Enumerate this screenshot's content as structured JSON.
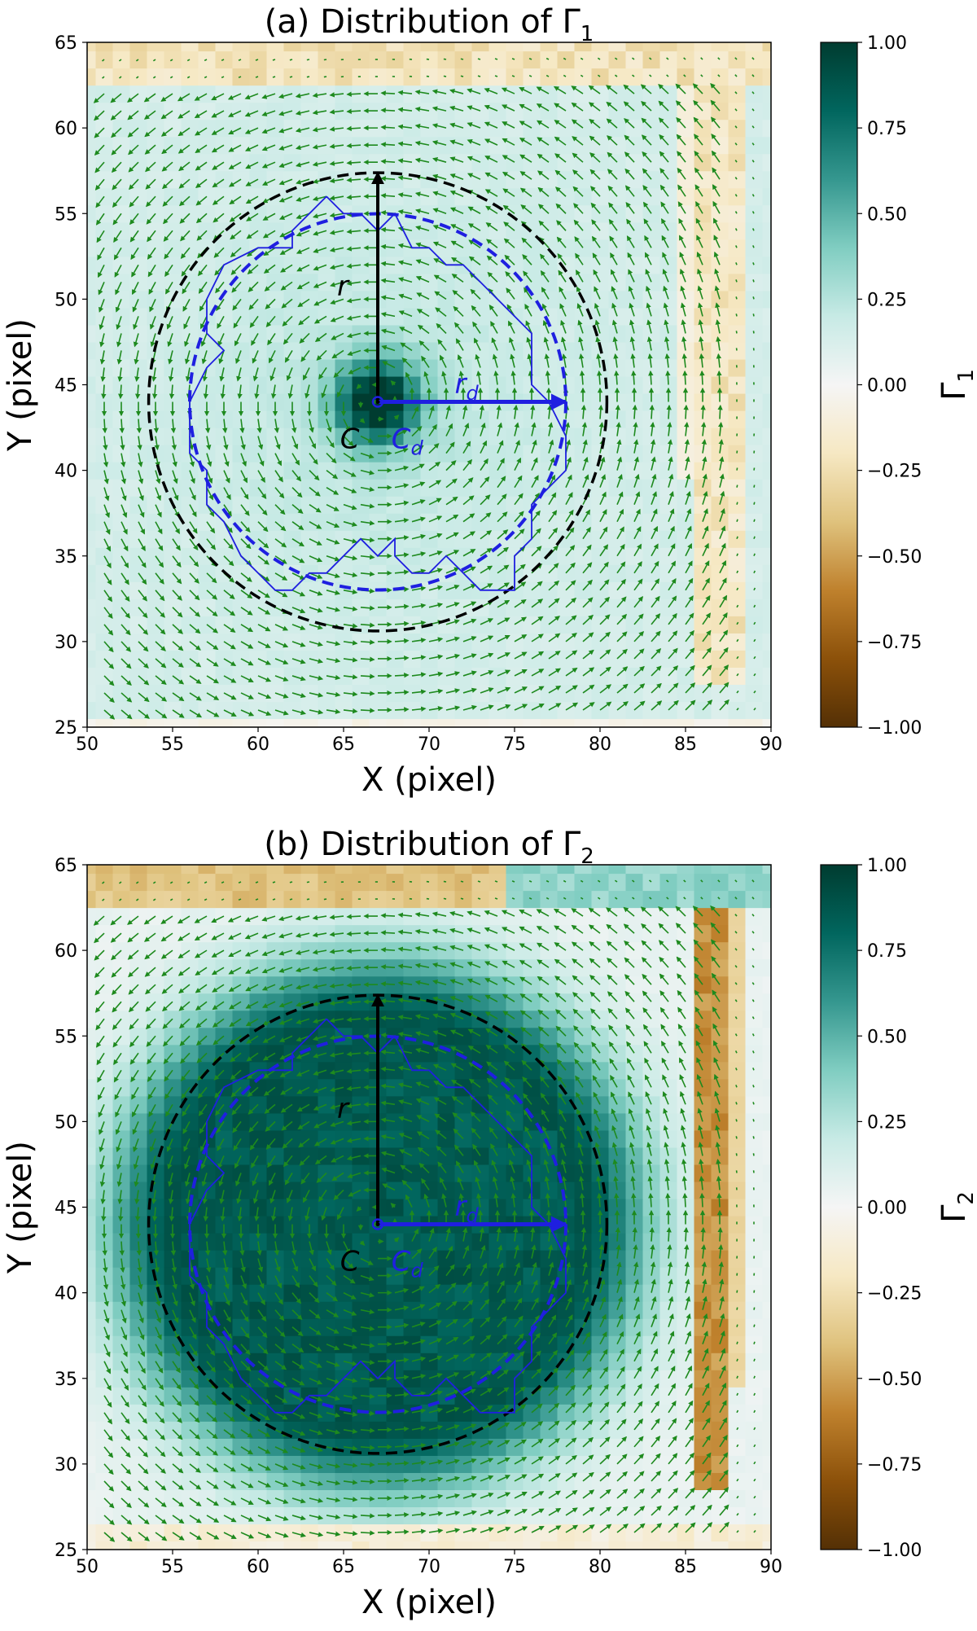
{
  "chart_data": [
    {
      "type": "heatmap",
      "panel": "a",
      "title_prefix": "(a) Distribution of Γ",
      "title_sub": "1",
      "xlabel": "X (pixel)",
      "ylabel": "Y (pixel)",
      "xlim": [
        50,
        90
      ],
      "ylim": [
        25,
        65
      ],
      "xticks": [
        "50",
        "55",
        "60",
        "65",
        "70",
        "75",
        "80",
        "85",
        "90"
      ],
      "yticks": [
        "25",
        "30",
        "35",
        "40",
        "45",
        "50",
        "55",
        "60",
        "65"
      ],
      "colorbar_label": "Γ",
      "colorbar_sub": "1",
      "colorbar_range": [
        -1.0,
        1.0
      ],
      "colorbar_ticks": [
        "−1.00",
        "−0.75",
        "−0.50",
        "−0.25",
        "0.00",
        "0.25",
        "0.50",
        "0.75",
        "1.00"
      ],
      "center": {
        "x": 67,
        "y": 44
      },
      "outer_circle": {
        "cx": 67,
        "cy": 44,
        "r": 13.4,
        "color": "#000000"
      },
      "detected_circle": {
        "cx": 67,
        "cy": 44,
        "r": 11.0,
        "color": "#1f1fe0"
      },
      "detected_boundary": [
        [
          64,
          56
        ],
        [
          65,
          55
        ],
        [
          66,
          55
        ],
        [
          67,
          54
        ],
        [
          68,
          55
        ],
        [
          69,
          53
        ],
        [
          70,
          53
        ],
        [
          71,
          52
        ],
        [
          72,
          52
        ],
        [
          73,
          51
        ],
        [
          74,
          50
        ],
        [
          75,
          49
        ],
        [
          76,
          48
        ],
        [
          76,
          45
        ],
        [
          77,
          44
        ],
        [
          78,
          42
        ],
        [
          78,
          40
        ],
        [
          77,
          39
        ],
        [
          76,
          38
        ],
        [
          76,
          36
        ],
        [
          75,
          35
        ],
        [
          75,
          33
        ],
        [
          73,
          33
        ],
        [
          72,
          34
        ],
        [
          71,
          35
        ],
        [
          70,
          34
        ],
        [
          69,
          34
        ],
        [
          68,
          35
        ],
        [
          68,
          36
        ],
        [
          67,
          35
        ],
        [
          66,
          36
        ],
        [
          64,
          34
        ],
        [
          63,
          34
        ],
        [
          62,
          33
        ],
        [
          61,
          33
        ],
        [
          60,
          34
        ],
        [
          59,
          35
        ],
        [
          58,
          37
        ],
        [
          57,
          38
        ],
        [
          57,
          40
        ],
        [
          56,
          41
        ],
        [
          56,
          44
        ],
        [
          57,
          46
        ],
        [
          58,
          47
        ],
        [
          57,
          48
        ],
        [
          57,
          50
        ],
        [
          58,
          52
        ],
        [
          60,
          53
        ],
        [
          62,
          53
        ],
        [
          62,
          54
        ],
        [
          63,
          55
        ],
        [
          64,
          56
        ]
      ],
      "r_arrow": {
        "from": [
          67,
          44
        ],
        "to": [
          67,
          57.4
        ],
        "label": "r"
      },
      "rd_arrow": {
        "from": [
          67,
          44
        ],
        "to": [
          78,
          44
        ],
        "label_main": "r",
        "label_sub": "d"
      },
      "center_label": "C",
      "center_d_label": "C",
      "center_d_sub": "d",
      "mode": "gamma1"
    },
    {
      "type": "heatmap",
      "panel": "b",
      "title_prefix": "(b) Distribution of Γ",
      "title_sub": "2",
      "xlabel": "X (pixel)",
      "ylabel": "Y (pixel)",
      "xlim": [
        50,
        90
      ],
      "ylim": [
        25,
        65
      ],
      "xticks": [
        "50",
        "55",
        "60",
        "65",
        "70",
        "75",
        "80",
        "85",
        "90"
      ],
      "yticks": [
        "25",
        "30",
        "35",
        "40",
        "45",
        "50",
        "55",
        "60",
        "65"
      ],
      "colorbar_label": "Γ",
      "colorbar_sub": "2",
      "colorbar_range": [
        -1.0,
        1.0
      ],
      "colorbar_ticks": [
        "−1.00",
        "−0.75",
        "−0.50",
        "−0.25",
        "0.00",
        "0.25",
        "0.50",
        "0.75",
        "1.00"
      ],
      "center": {
        "x": 67,
        "y": 44
      },
      "outer_circle": {
        "cx": 67,
        "cy": 44,
        "r": 13.4,
        "color": "#000000"
      },
      "detected_circle": {
        "cx": 67,
        "cy": 44,
        "r": 11.0,
        "color": "#1f1fe0"
      },
      "detected_boundary": [
        [
          64,
          56
        ],
        [
          65,
          55
        ],
        [
          66,
          55
        ],
        [
          67,
          54
        ],
        [
          68,
          55
        ],
        [
          69,
          53
        ],
        [
          70,
          53
        ],
        [
          71,
          52
        ],
        [
          72,
          52
        ],
        [
          73,
          51
        ],
        [
          74,
          50
        ],
        [
          75,
          49
        ],
        [
          76,
          48
        ],
        [
          76,
          45
        ],
        [
          77,
          44
        ],
        [
          78,
          42
        ],
        [
          78,
          40
        ],
        [
          77,
          39
        ],
        [
          76,
          38
        ],
        [
          76,
          36
        ],
        [
          75,
          35
        ],
        [
          75,
          33
        ],
        [
          73,
          33
        ],
        [
          72,
          34
        ],
        [
          71,
          35
        ],
        [
          70,
          34
        ],
        [
          69,
          34
        ],
        [
          68,
          35
        ],
        [
          68,
          36
        ],
        [
          67,
          35
        ],
        [
          66,
          36
        ],
        [
          64,
          34
        ],
        [
          63,
          34
        ],
        [
          62,
          33
        ],
        [
          61,
          33
        ],
        [
          60,
          34
        ],
        [
          59,
          35
        ],
        [
          58,
          37
        ],
        [
          57,
          38
        ],
        [
          57,
          40
        ],
        [
          56,
          41
        ],
        [
          56,
          44
        ],
        [
          57,
          46
        ],
        [
          58,
          47
        ],
        [
          57,
          48
        ],
        [
          57,
          50
        ],
        [
          58,
          52
        ],
        [
          60,
          53
        ],
        [
          62,
          53
        ],
        [
          62,
          54
        ],
        [
          63,
          55
        ],
        [
          64,
          56
        ]
      ],
      "r_arrow": {
        "from": [
          67,
          44
        ],
        "to": [
          67,
          57.4
        ],
        "label": "r"
      },
      "rd_arrow": {
        "from": [
          67,
          44
        ],
        "to": [
          78,
          44
        ],
        "label_main": "r",
        "label_sub": "d"
      },
      "center_label": "C",
      "center_d_label": "C",
      "center_d_sub": "d",
      "mode": "gamma2"
    }
  ],
  "colors": {
    "colormap": [
      "#543005",
      "#8c510a",
      "#bf812d",
      "#dfc27d",
      "#f6e8c3",
      "#f5f5f5",
      "#c7eae5",
      "#80cdc1",
      "#35978f",
      "#01665e",
      "#003c30"
    ],
    "quiver": "#1e8a1e",
    "axis": "#000000"
  }
}
